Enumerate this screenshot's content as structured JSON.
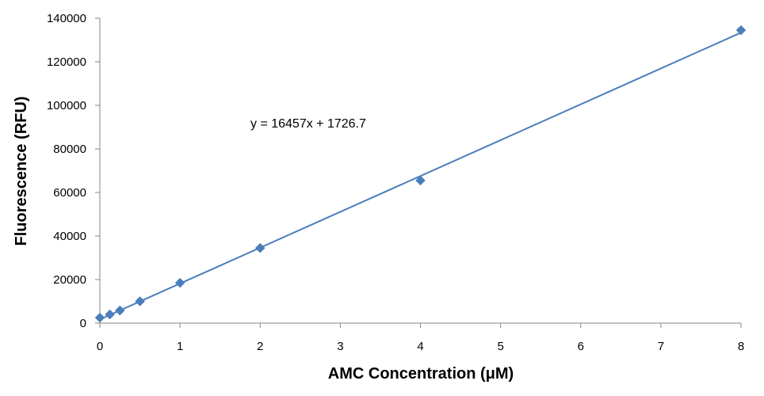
{
  "chart_data": {
    "type": "scatter",
    "title": "",
    "xlabel": "AMC Concentration (μM)",
    "ylabel": "Fluorescence (RFU)",
    "xlim": [
      0,
      8
    ],
    "ylim": [
      0,
      140000
    ],
    "x_ticks": [
      0,
      1,
      2,
      3,
      4,
      5,
      6,
      7,
      8
    ],
    "y_ticks": [
      0,
      20000,
      40000,
      60000,
      80000,
      100000,
      120000,
      140000
    ],
    "grid": false,
    "legend": "none",
    "series": [
      {
        "marker": "diamond",
        "color": "#4a7ebb",
        "x": [
          0,
          0.125,
          0.25,
          0.5,
          1,
          2,
          4,
          8
        ],
        "y": [
          2500,
          4000,
          5800,
          10000,
          18500,
          34500,
          65500,
          134500
        ]
      }
    ],
    "trendline": {
      "type": "linear",
      "slope": 16457,
      "intercept": 1726.7,
      "color": "#4a7ebb",
      "equation_label": "y = 16457x + 1726.7"
    }
  }
}
